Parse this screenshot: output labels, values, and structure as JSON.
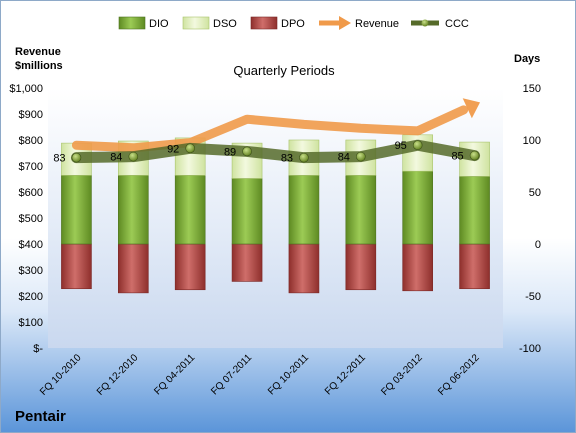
{
  "chart_data": {
    "type": "bar",
    "title": "Quarterly Periods",
    "company": "Pentair",
    "left_axis_label_line1": "Revenue",
    "left_axis_label_line2": "$millions",
    "right_axis_label": "Days",
    "categories": [
      "FQ 10-2010",
      "FQ 12-2010",
      "FQ 04-2011",
      "FQ 07-2011",
      "FQ 10-2011",
      "FQ 12-2011",
      "FQ 03-2012",
      "FQ 06-2012"
    ],
    "left_ticks": [
      "$-",
      "$100",
      "$200",
      "$300",
      "$400",
      "$500",
      "$600",
      "$700",
      "$800",
      "$900",
      "$1,000"
    ],
    "right_ticks": [
      "-100",
      "-50",
      "0",
      "50",
      "100",
      "150"
    ],
    "left_ylim": [
      0,
      1000
    ],
    "right_ylim": [
      -100,
      150
    ],
    "legend_position": "top",
    "series": [
      {
        "name": "DIO",
        "axis": "days",
        "values": [
          66,
          66,
          66,
          63,
          66,
          66,
          70,
          65
        ],
        "color": "#7aa83a"
      },
      {
        "name": "DSO",
        "axis": "days",
        "values": [
          31,
          33,
          36,
          34,
          34,
          34,
          35,
          33
        ],
        "color": "#e6f2c3"
      },
      {
        "name": "DPO",
        "axis": "days",
        "values": [
          -43,
          -47,
          -44,
          -36,
          -47,
          -44,
          -45,
          -43
        ],
        "color": "#c0504d"
      },
      {
        "name": "Revenue",
        "axis": "revenue",
        "values": [
          780,
          770,
          790,
          880,
          860,
          845,
          835,
          935
        ],
        "color": "#f09a4a"
      },
      {
        "name": "CCC",
        "axis": "days",
        "values": [
          83,
          84,
          92,
          89,
          83,
          84,
          95,
          85
        ],
        "color": "#566b2a"
      }
    ],
    "ccc_labels": [
      "83",
      "84",
      "92",
      "89",
      "83",
      "84",
      "95",
      "85"
    ]
  }
}
